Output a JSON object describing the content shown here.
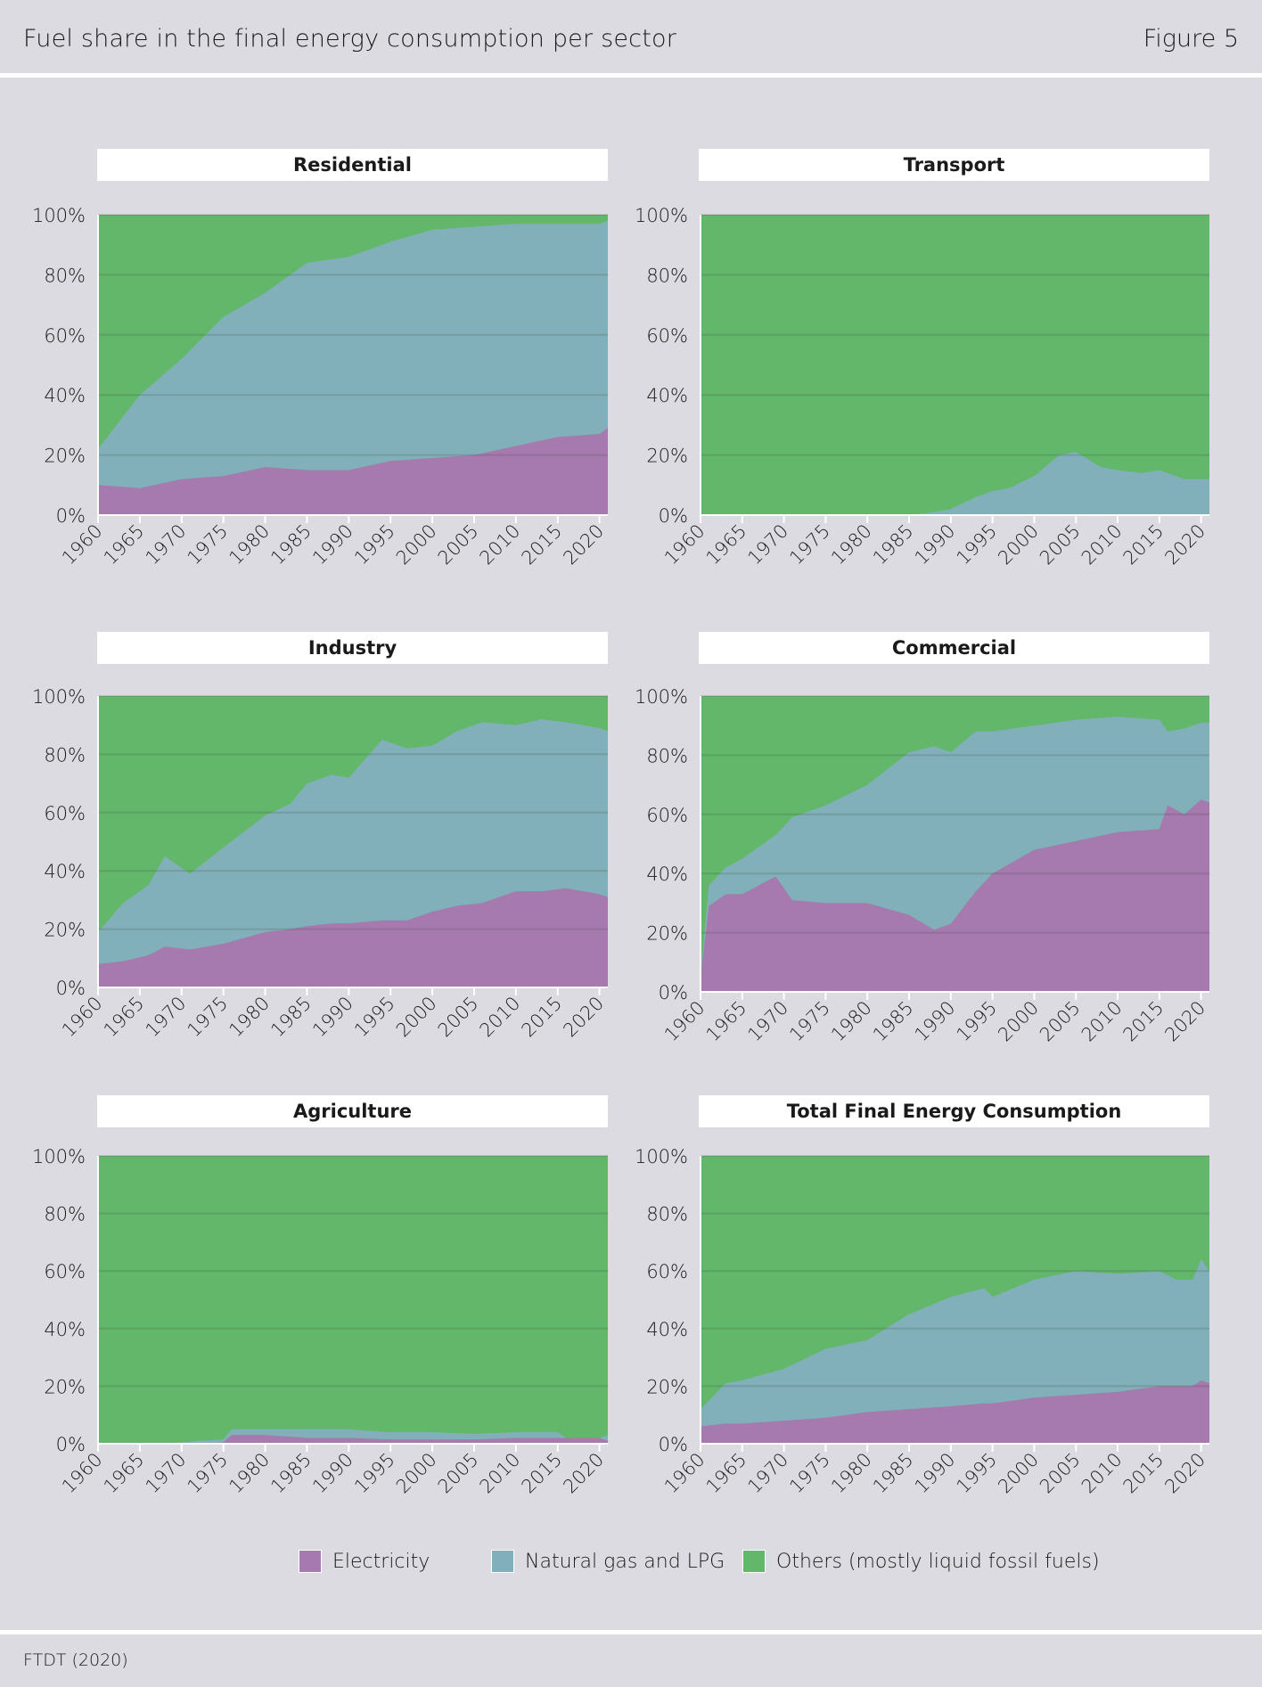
{
  "header": {
    "title": "Fuel share in the final energy consumption per sector",
    "figure": "Figure 5"
  },
  "source": "FTDT (2020)",
  "legend": [
    {
      "label": "Electricity",
      "color": "#a67aae"
    },
    {
      "label": "Natural gas and LPG",
      "color": "#82b0ba"
    },
    {
      "label": "Others (mostly liquid fossil fuels)",
      "color": "#62b76b"
    }
  ],
  "colors": {
    "electricity": "#a67aae",
    "gas": "#82b0ba",
    "others": "#62b76b"
  },
  "chart_data": [
    {
      "type": "area",
      "stacked": true,
      "title": "Residential",
      "x": [
        1960,
        1965,
        1970,
        1975,
        1980,
        1985,
        1990,
        1995,
        2000,
        2005,
        2010,
        2015,
        2020,
        2021
      ],
      "series": [
        {
          "name": "Electricity",
          "values": [
            10,
            9,
            12,
            13,
            16,
            15,
            15,
            18,
            19,
            20,
            23,
            26,
            27,
            29
          ]
        },
        {
          "name": "Natural gas and LPG",
          "values": [
            12,
            31,
            40,
            53,
            58,
            69,
            71,
            73,
            76,
            76,
            74,
            71,
            70,
            69
          ]
        }
      ],
      "ylim": [
        0,
        100
      ],
      "yticks": [
        "0%",
        "20%",
        "40%",
        "60%",
        "80%",
        "100%"
      ],
      "xticks": [
        "1960",
        "1965",
        "1970",
        "1975",
        "1980",
        "1985",
        "1990",
        "1995",
        "2000",
        "2005",
        "2010",
        "2015",
        "2020"
      ]
    },
    {
      "type": "area",
      "stacked": true,
      "title": "Transport",
      "x": [
        1960,
        1985,
        1988,
        1990,
        1993,
        1995,
        1997,
        2000,
        2003,
        2005,
        2008,
        2010,
        2013,
        2015,
        2018,
        2021
      ],
      "series": [
        {
          "name": "Electricity",
          "values": [
            0,
            0,
            0,
            0,
            0,
            0,
            0,
            0,
            0,
            0,
            0,
            0,
            0,
            0,
            0,
            0
          ]
        },
        {
          "name": "Natural gas and LPG",
          "values": [
            0,
            0,
            1,
            2,
            6,
            8,
            9,
            13,
            20,
            21,
            16,
            15,
            14,
            15,
            12,
            12
          ]
        }
      ],
      "ylim": [
        0,
        100
      ],
      "yticks": [
        "0%",
        "20%",
        "40%",
        "60%",
        "80%",
        "100%"
      ],
      "xticks": [
        "1960",
        "1965",
        "1970",
        "1975",
        "1980",
        "1985",
        "1990",
        "1995",
        "2000",
        "2005",
        "2010",
        "2015",
        "2020"
      ]
    },
    {
      "type": "area",
      "stacked": true,
      "title": "Industry",
      "x": [
        1960,
        1963,
        1966,
        1968,
        1971,
        1975,
        1980,
        1983,
        1985,
        1988,
        1990,
        1994,
        1997,
        2000,
        2003,
        2006,
        2010,
        2013,
        2016,
        2020,
        2021
      ],
      "series": [
        {
          "name": "Electricity",
          "values": [
            8,
            9,
            11,
            14,
            13,
            15,
            19,
            20,
            21,
            22,
            22,
            23,
            23,
            26,
            28,
            29,
            33,
            33,
            34,
            32,
            31
          ]
        },
        {
          "name": "Natural gas and LPG",
          "values": [
            11,
            20,
            24,
            31,
            26,
            33,
            40,
            43,
            49,
            51,
            50,
            62,
            59,
            57,
            60,
            62,
            57,
            59,
            57,
            57,
            57
          ]
        }
      ],
      "ylim": [
        0,
        100
      ],
      "yticks": [
        "0%",
        "20%",
        "40%",
        "60%",
        "80%",
        "100%"
      ],
      "xticks": [
        "1960",
        "1965",
        "1970",
        "1975",
        "1980",
        "1985",
        "1990",
        "1995",
        "2000",
        "2005",
        "2010",
        "2015",
        "2020"
      ]
    },
    {
      "type": "area",
      "stacked": true,
      "title": "Commercial",
      "x": [
        1960,
        1961,
        1963,
        1965,
        1969,
        1971,
        1975,
        1980,
        1985,
        1988,
        1990,
        1993,
        1995,
        2000,
        2005,
        2010,
        2015,
        2016,
        2018,
        2020,
        2021
      ],
      "series": [
        {
          "name": "Electricity",
          "values": [
            5,
            29,
            33,
            33,
            39,
            31,
            30,
            30,
            26,
            21,
            23,
            34,
            40,
            48,
            51,
            54,
            55,
            63,
            60,
            65,
            64
          ]
        },
        {
          "name": "Natural gas and LPG",
          "values": [
            0,
            7,
            9,
            12,
            14,
            28,
            33,
            40,
            55,
            62,
            58,
            54,
            48,
            42,
            41,
            39,
            37,
            25,
            29,
            26,
            27
          ]
        }
      ],
      "ylim": [
        0,
        100
      ],
      "yticks": [
        "0%",
        "20%",
        "40%",
        "60%",
        "80%",
        "100%"
      ],
      "xticks": [
        "1960",
        "1965",
        "1970",
        "1975",
        "1980",
        "1985",
        "1990",
        "1995",
        "2000",
        "2005",
        "2010",
        "2015",
        "2020"
      ]
    },
    {
      "type": "area",
      "stacked": true,
      "title": "Agriculture",
      "x": [
        1960,
        1969,
        1972,
        1975,
        1976,
        1980,
        1985,
        1990,
        1995,
        2000,
        2005,
        2010,
        2015,
        2016,
        2020,
        2021
      ],
      "series": [
        {
          "name": "Electricity",
          "values": [
            0,
            0,
            0,
            0.5,
            3,
            3,
            2,
            2,
            1.5,
            1.5,
            1.5,
            2,
            2,
            2,
            2,
            1
          ]
        },
        {
          "name": "Natural gas and LPG",
          "values": [
            0,
            0,
            1,
            1,
            2,
            2,
            3,
            3,
            2.5,
            2.5,
            2,
            2,
            2,
            0,
            0,
            2
          ]
        }
      ],
      "ylim": [
        0,
        100
      ],
      "yticks": [
        "0%",
        "20%",
        "40%",
        "60%",
        "80%",
        "100%"
      ],
      "xticks": [
        "1960",
        "1965",
        "1970",
        "1975",
        "1980",
        "1985",
        "1990",
        "1995",
        "2000",
        "2005",
        "2010",
        "2015",
        "2020"
      ]
    },
    {
      "type": "area",
      "stacked": true,
      "title": "Total Final Energy Consumption",
      "x": [
        1960,
        1963,
        1965,
        1970,
        1975,
        1980,
        1985,
        1990,
        1994,
        1995,
        2000,
        2005,
        2010,
        2015,
        2017,
        2019,
        2020,
        2021
      ],
      "series": [
        {
          "name": "Electricity",
          "values": [
            6,
            7,
            7,
            8,
            9,
            11,
            12,
            13,
            14,
            14,
            16,
            17,
            18,
            20,
            20,
            20,
            22,
            21
          ]
        },
        {
          "name": "Natural gas and LPG",
          "values": [
            6,
            14,
            15,
            18,
            24,
            25,
            33,
            38,
            40,
            37,
            41,
            43,
            41,
            40,
            37,
            37,
            42,
            39
          ]
        }
      ],
      "ylim": [
        0,
        100
      ],
      "yticks": [
        "0%",
        "20%",
        "40%",
        "60%",
        "80%",
        "100%"
      ],
      "xticks": [
        "1960",
        "1965",
        "1970",
        "1975",
        "1980",
        "1985",
        "1990",
        "1995",
        "2000",
        "2005",
        "2010",
        "2015",
        "2020"
      ]
    }
  ]
}
